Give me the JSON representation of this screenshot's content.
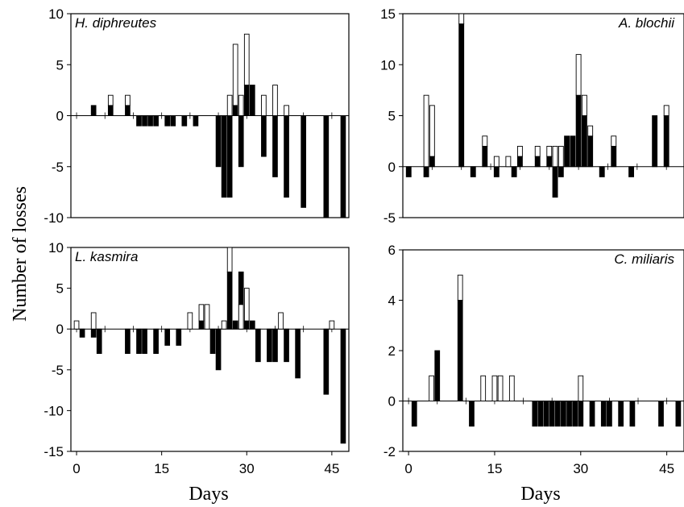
{
  "figure": {
    "ylabel": "Number of losses",
    "xlabel_left": "Days",
    "xlabel_right": "Days"
  },
  "chart_data": [
    {
      "type": "bar",
      "title": "H. diphreutes",
      "xlabel": "Days",
      "ylabel": "Number of losses",
      "xlim": [
        -1,
        48
      ],
      "ylim": [
        -10,
        10
      ],
      "yticks": [
        10,
        5,
        0,
        -5,
        -10
      ],
      "xticks": [],
      "series": [
        {
          "name": "filled",
          "color": "#000000",
          "bars": [
            [
              3,
              0,
              1
            ],
            [
              6,
              0,
              1
            ],
            [
              9,
              0,
              1
            ],
            [
              11,
              -1,
              0
            ],
            [
              12,
              -1,
              0
            ],
            [
              13,
              -1,
              0
            ],
            [
              14,
              -1,
              0
            ],
            [
              16,
              -1,
              0
            ],
            [
              17,
              -1,
              0
            ],
            [
              19,
              -1,
              0
            ],
            [
              21,
              -1,
              0
            ],
            [
              25,
              -5,
              0
            ],
            [
              26,
              -8,
              0
            ],
            [
              27,
              -8,
              0
            ],
            [
              28,
              0,
              1
            ],
            [
              29,
              -5,
              0
            ],
            [
              30,
              0,
              3
            ],
            [
              31,
              0,
              3
            ],
            [
              33,
              -4,
              0
            ],
            [
              35,
              -6,
              0
            ],
            [
              37,
              -8,
              0
            ],
            [
              40,
              -9,
              0
            ],
            [
              44,
              -10,
              0
            ],
            [
              47,
              -10,
              0
            ]
          ]
        },
        {
          "name": "open",
          "color": "#ffffff",
          "bars": [
            [
              6,
              1,
              2
            ],
            [
              9,
              1,
              2
            ],
            [
              27,
              0,
              2
            ],
            [
              28,
              1,
              7
            ],
            [
              29,
              0,
              2
            ],
            [
              30,
              3,
              8
            ],
            [
              33,
              0,
              2
            ],
            [
              35,
              0,
              3
            ],
            [
              37,
              0,
              1
            ]
          ]
        }
      ]
    },
    {
      "type": "bar",
      "title": "A. blochii",
      "xlabel": "Days",
      "ylabel": "Number of losses",
      "xlim": [
        0,
        48
      ],
      "ylim": [
        -5,
        15
      ],
      "yticks": [
        15,
        10,
        5,
        0,
        -5
      ],
      "xticks": [],
      "series": [
        {
          "name": "filled",
          "color": "#000000",
          "bars": [
            [
              1,
              -1,
              0
            ],
            [
              4,
              -1,
              0
            ],
            [
              5,
              0,
              1
            ],
            [
              10,
              0,
              14
            ],
            [
              12,
              -1,
              0
            ],
            [
              14,
              0,
              2
            ],
            [
              16,
              -1,
              0
            ],
            [
              19,
              -1,
              0
            ],
            [
              20,
              0,
              1
            ],
            [
              23,
              0,
              1
            ],
            [
              25,
              0,
              1
            ],
            [
              26,
              -3,
              0
            ],
            [
              27,
              -1,
              0
            ],
            [
              28,
              0,
              3
            ],
            [
              29,
              0,
              3
            ],
            [
              30,
              0,
              7
            ],
            [
              31,
              0,
              5
            ],
            [
              32,
              0,
              3
            ],
            [
              34,
              -1,
              0
            ],
            [
              36,
              0,
              2
            ],
            [
              39,
              -1,
              0
            ],
            [
              43,
              0,
              5
            ],
            [
              45,
              0,
              5
            ]
          ]
        },
        {
          "name": "open",
          "color": "#ffffff",
          "bars": [
            [
              4,
              0,
              7
            ],
            [
              5,
              1,
              6
            ],
            [
              10,
              14,
              15
            ],
            [
              14,
              2,
              3
            ],
            [
              16,
              0,
              1
            ],
            [
              18,
              0,
              1
            ],
            [
              20,
              1,
              2
            ],
            [
              23,
              1,
              2
            ],
            [
              25,
              1,
              2
            ],
            [
              26,
              0,
              2
            ],
            [
              27,
              0,
              2
            ],
            [
              30,
              7,
              11
            ],
            [
              31,
              5,
              7
            ],
            [
              32,
              3,
              4
            ],
            [
              36,
              2,
              3
            ],
            [
              45,
              5,
              6
            ]
          ]
        }
      ]
    },
    {
      "type": "bar",
      "title": "L. kasmira",
      "xlabel": "Days",
      "ylabel": "Number of losses",
      "xlim": [
        -1,
        48
      ],
      "ylim": [
        -15,
        10
      ],
      "yticks": [
        10,
        5,
        0,
        -5,
        -10,
        -15
      ],
      "xticks": [
        0,
        15,
        30,
        45
      ],
      "series": [
        {
          "name": "filled",
          "color": "#000000",
          "bars": [
            [
              1,
              -1,
              0
            ],
            [
              3,
              -1,
              0
            ],
            [
              4,
              -3,
              0
            ],
            [
              9,
              -3,
              0
            ],
            [
              11,
              -3,
              0
            ],
            [
              12,
              -3,
              0
            ],
            [
              14,
              -3,
              0
            ],
            [
              16,
              -2,
              0
            ],
            [
              18,
              -2,
              0
            ],
            [
              22,
              0,
              1
            ],
            [
              24,
              -3,
              0
            ],
            [
              25,
              -5,
              0
            ],
            [
              27,
              0,
              7
            ],
            [
              28,
              0,
              1
            ],
            [
              29,
              0,
              7
            ],
            [
              30,
              0,
              1
            ],
            [
              31,
              0,
              1
            ],
            [
              32,
              -4,
              0
            ],
            [
              34,
              -4,
              0
            ],
            [
              35,
              -4,
              0
            ],
            [
              37,
              -4,
              0
            ],
            [
              39,
              -6,
              0
            ],
            [
              44,
              -8,
              0
            ],
            [
              47,
              -14,
              0
            ]
          ]
        },
        {
          "name": "open",
          "color": "#ffffff",
          "bars": [
            [
              0,
              0,
              1
            ],
            [
              3,
              0,
              2
            ],
            [
              20,
              0,
              2
            ],
            [
              22,
              1,
              3
            ],
            [
              23,
              0,
              3
            ],
            [
              26,
              0,
              1
            ],
            [
              27,
              7,
              10
            ],
            [
              29,
              0,
              3
            ],
            [
              30,
              1,
              5
            ],
            [
              36,
              0,
              2
            ],
            [
              45,
              0,
              1
            ]
          ]
        }
      ]
    },
    {
      "type": "bar",
      "title": "C. miliaris",
      "xlabel": "Days",
      "ylabel": "Number of losses",
      "xlim": [
        -1,
        48
      ],
      "ylim": [
        -2,
        6
      ],
      "yticks": [
        6,
        4,
        2,
        0,
        -2
      ],
      "xticks": [
        0,
        15,
        30,
        45
      ],
      "series": [
        {
          "name": "filled",
          "color": "#000000",
          "bars": [
            [
              1,
              -1,
              0
            ],
            [
              5,
              0,
              2
            ],
            [
              9,
              0,
              4
            ],
            [
              11,
              -1,
              0
            ],
            [
              22,
              -1,
              0
            ],
            [
              23,
              -1,
              0
            ],
            [
              24,
              -1,
              0
            ],
            [
              25,
              -1,
              0
            ],
            [
              26,
              -1,
              0
            ],
            [
              27,
              -1,
              0
            ],
            [
              28,
              -1,
              0
            ],
            [
              29,
              -1,
              0
            ],
            [
              30,
              -1,
              0
            ],
            [
              32,
              -1,
              0
            ],
            [
              34,
              -1,
              0
            ],
            [
              35,
              -1,
              0
            ],
            [
              37,
              -1,
              0
            ],
            [
              39,
              -1,
              0
            ],
            [
              44,
              -1,
              0
            ],
            [
              47,
              -1,
              0
            ]
          ]
        },
        {
          "name": "open",
          "color": "#ffffff",
          "bars": [
            [
              4,
              0,
              1
            ],
            [
              9,
              4,
              5
            ],
            [
              13,
              0,
              1
            ],
            [
              15,
              0,
              1
            ],
            [
              16,
              0,
              1
            ],
            [
              18,
              0,
              1
            ],
            [
              30,
              0,
              1
            ]
          ]
        }
      ]
    }
  ]
}
